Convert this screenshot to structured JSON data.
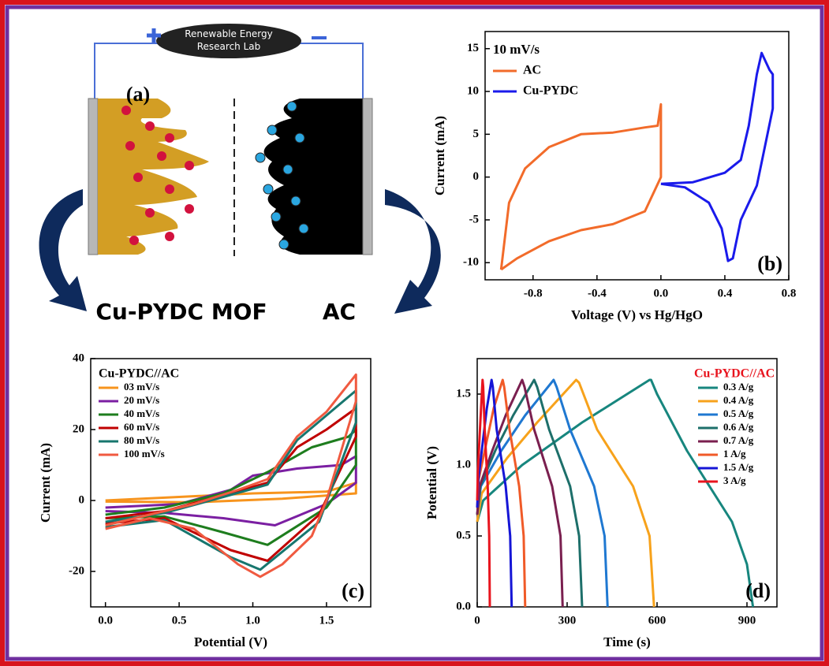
{
  "diagram": {
    "label": "(a)",
    "battery": [
      "Renewable Energy",
      "Research Lab"
    ],
    "left_material": "Cu-PYDC MOF",
    "right_material": "AC"
  },
  "chart_data": [
    {
      "type": "line",
      "x_label": "Voltage (V) vs Hg/HgO",
      "y_label": "Current (mA)",
      "panel_label": "(b)",
      "legend_title": "10 mV/s",
      "legend": "upper left",
      "xlim": [
        -1.1,
        0.8
      ],
      "xticks": [
        -0.8,
        -0.4,
        {
          "value": 0,
          "label": "0.0"
        },
        0.4,
        0.8
      ],
      "ylim": [
        -12,
        17
      ],
      "yticks": [
        -10,
        -5,
        0,
        5,
        10,
        15
      ],
      "series": [
        {
          "name": "AC",
          "color": "#f26b2a",
          "x": [
            -1.0,
            -0.95,
            -0.85,
            -0.7,
            -0.5,
            -0.3,
            -0.1,
            -0.02,
            0.0,
            0.0,
            -0.1,
            -0.3,
            -0.5,
            -0.7,
            -0.9,
            -1.0
          ],
          "values": [
            -10.8,
            -3,
            1,
            3.5,
            5,
            5.2,
            5.8,
            6,
            8.5,
            0,
            -4,
            -5.5,
            -6.2,
            -7.5,
            -9.5,
            -10.8
          ]
        },
        {
          "name": "Cu-PYDC",
          "color": "#1a1aeb",
          "x": [
            0.0,
            0.2,
            0.4,
            0.5,
            0.55,
            0.6,
            0.63,
            0.68,
            0.7,
            0.7,
            0.6,
            0.5,
            0.45,
            0.42,
            0.38,
            0.3,
            0.15,
            0.0
          ],
          "values": [
            -0.8,
            -0.6,
            0.5,
            2,
            6,
            12,
            14.5,
            12.5,
            12,
            8,
            -1,
            -5,
            -9.5,
            -9.8,
            -6,
            -3,
            -1.2,
            -0.8
          ]
        }
      ]
    },
    {
      "type": "line",
      "x_label": "Potential (V)",
      "y_label": "Current (mA)",
      "panel_label": "(c)",
      "legend_title": "Cu-PYDC//AC",
      "legend": "upper left",
      "xlim": [
        -0.1,
        1.8
      ],
      "xticks": [
        {
          "value": 0,
          "label": "0.0"
        },
        0.5,
        {
          "value": 1,
          "label": "1.0"
        },
        1.5
      ],
      "ylim": [
        -30,
        40
      ],
      "yticks": [
        -20,
        0,
        20,
        40
      ],
      "series": [
        {
          "name": "03 mV/s",
          "color": "#f7941d",
          "x": [
            0,
            0.5,
            1.0,
            1.5,
            1.7,
            1.7,
            1.2,
            0.6,
            0
          ],
          "values": [
            0,
            1,
            2,
            2.5,
            5,
            2,
            0.5,
            -0.5,
            -0.3
          ]
        },
        {
          "name": "20 mV/s",
          "color": "#7b1fa2",
          "x": [
            0,
            0.5,
            0.85,
            1.0,
            1.3,
            1.6,
            1.7,
            1.7,
            1.5,
            1.15,
            0.8,
            0.4,
            0
          ],
          "values": [
            -2,
            -1,
            3,
            7,
            9,
            10,
            12.5,
            5,
            -1,
            -7,
            -5,
            -3.5,
            -3
          ]
        },
        {
          "name": "40 mV/s",
          "color": "#1e7d1e",
          "x": [
            0,
            0.4,
            0.8,
            1.1,
            1.4,
            1.65,
            1.7,
            1.7,
            1.5,
            1.1,
            0.8,
            0.4,
            0
          ],
          "values": [
            -4,
            -2,
            2,
            8,
            15,
            18,
            20,
            10,
            -2,
            -12.5,
            -9,
            -4.5,
            -5
          ]
        },
        {
          "name": "60 mV/s",
          "color": "#c00000",
          "x": [
            0,
            0.4,
            0.8,
            1.1,
            1.3,
            1.5,
            1.7,
            1.7,
            1.45,
            1.1,
            0.85,
            0.4,
            0
          ],
          "values": [
            -5,
            -3,
            1.5,
            5,
            15,
            20,
            26,
            18,
            -4,
            -17,
            -14,
            -5,
            -6.5
          ]
        },
        {
          "name": "80 mV/s",
          "color": "#17766e",
          "x": [
            0,
            0.4,
            0.8,
            1.1,
            1.3,
            1.5,
            1.7,
            1.7,
            1.45,
            1.05,
            0.85,
            0.4,
            0
          ],
          "values": [
            -6,
            -3.5,
            1,
            4.5,
            17,
            24,
            31,
            22,
            -6,
            -19.5,
            -16,
            -5.5,
            -7.5
          ]
        },
        {
          "name": "100 mV/s",
          "color": "#f05a40",
          "x": [
            0,
            0.3,
            0.6,
            0.9,
            1.1,
            1.3,
            1.5,
            1.7,
            1.7,
            1.5,
            1.4,
            1.2,
            1.05,
            0.9,
            0.6,
            0.3,
            0
          ],
          "values": [
            -7,
            -4,
            -1,
            3,
            6,
            18,
            25,
            35.5,
            28,
            0,
            -10,
            -18,
            -21.5,
            -18,
            -8,
            -5,
            -8
          ]
        }
      ]
    },
    {
      "type": "line",
      "x_label": "Time (s)",
      "y_label": "Potential (V)",
      "panel_label": "(d)",
      "legend_title": "Cu-PYDC//AC",
      "legend_title_color": "#e8141e",
      "legend": "upper right",
      "xlim": [
        0,
        1000
      ],
      "xticks": [
        0,
        300,
        600,
        900
      ],
      "ylim": [
        0,
        1.75
      ],
      "yticks": [
        {
          "value": 0,
          "label": "0.0"
        },
        0.5,
        {
          "value": 1,
          "label": "1.0"
        },
        1.5
      ],
      "series": [
        {
          "name": "0.3 A/g",
          "color": "#17867e",
          "x": [
            0,
            20,
            150,
            350,
            575,
            580,
            600,
            700,
            850,
            900,
            920
          ],
          "values": [
            0.6,
            0.75,
            1.0,
            1.3,
            1.6,
            1.6,
            1.5,
            1.1,
            0.6,
            0.3,
            0
          ]
        },
        {
          "name": "0.4 A/g",
          "color": "#f7a21b",
          "x": [
            0,
            15,
            100,
            200,
            330,
            340,
            400,
            520,
            575,
            590
          ],
          "values": [
            0.6,
            0.8,
            1.05,
            1.3,
            1.6,
            1.58,
            1.25,
            0.85,
            0.5,
            0
          ]
        },
        {
          "name": "0.5 A/g",
          "color": "#1f78d1",
          "x": [
            0,
            12,
            80,
            160,
            255,
            265,
            310,
            390,
            425,
            435
          ],
          "values": [
            0.65,
            0.85,
            1.1,
            1.35,
            1.6,
            1.55,
            1.25,
            0.85,
            0.5,
            0
          ]
        },
        {
          "name": "0.6 A/g",
          "color": "#1d6f6a",
          "x": [
            0,
            10,
            60,
            120,
            190,
            200,
            240,
            310,
            340,
            350
          ],
          "values": [
            0.65,
            0.85,
            1.1,
            1.35,
            1.6,
            1.55,
            1.25,
            0.85,
            0.5,
            0
          ]
        },
        {
          "name": "0.7 A/g",
          "color": "#7a1f4f",
          "x": [
            0,
            8,
            50,
            95,
            150,
            158,
            190,
            250,
            278,
            285
          ],
          "values": [
            0.65,
            0.85,
            1.1,
            1.35,
            1.6,
            1.55,
            1.25,
            0.85,
            0.5,
            0
          ]
        },
        {
          "name": "1 A/g",
          "color": "#f05a28",
          "x": [
            0,
            5,
            30,
            55,
            85,
            90,
            108,
            140,
            155,
            160
          ],
          "values": [
            0.7,
            0.9,
            1.15,
            1.4,
            1.6,
            1.55,
            1.25,
            0.85,
            0.5,
            0
          ]
        },
        {
          "name": "1.5 A/g",
          "color": "#1515d6",
          "x": [
            0,
            4,
            18,
            32,
            48,
            52,
            65,
            95,
            110,
            115
          ],
          "values": [
            0.7,
            0.9,
            1.15,
            1.4,
            1.6,
            1.55,
            1.25,
            0.85,
            0.5,
            0
          ]
        },
        {
          "name": "3 A/g",
          "color": "#e8141e",
          "x": [
            0,
            2,
            8,
            13,
            18,
            20,
            25,
            35,
            40,
            42
          ],
          "values": [
            0.75,
            0.95,
            1.2,
            1.4,
            1.6,
            1.55,
            1.25,
            0.85,
            0.5,
            0
          ]
        }
      ]
    }
  ]
}
